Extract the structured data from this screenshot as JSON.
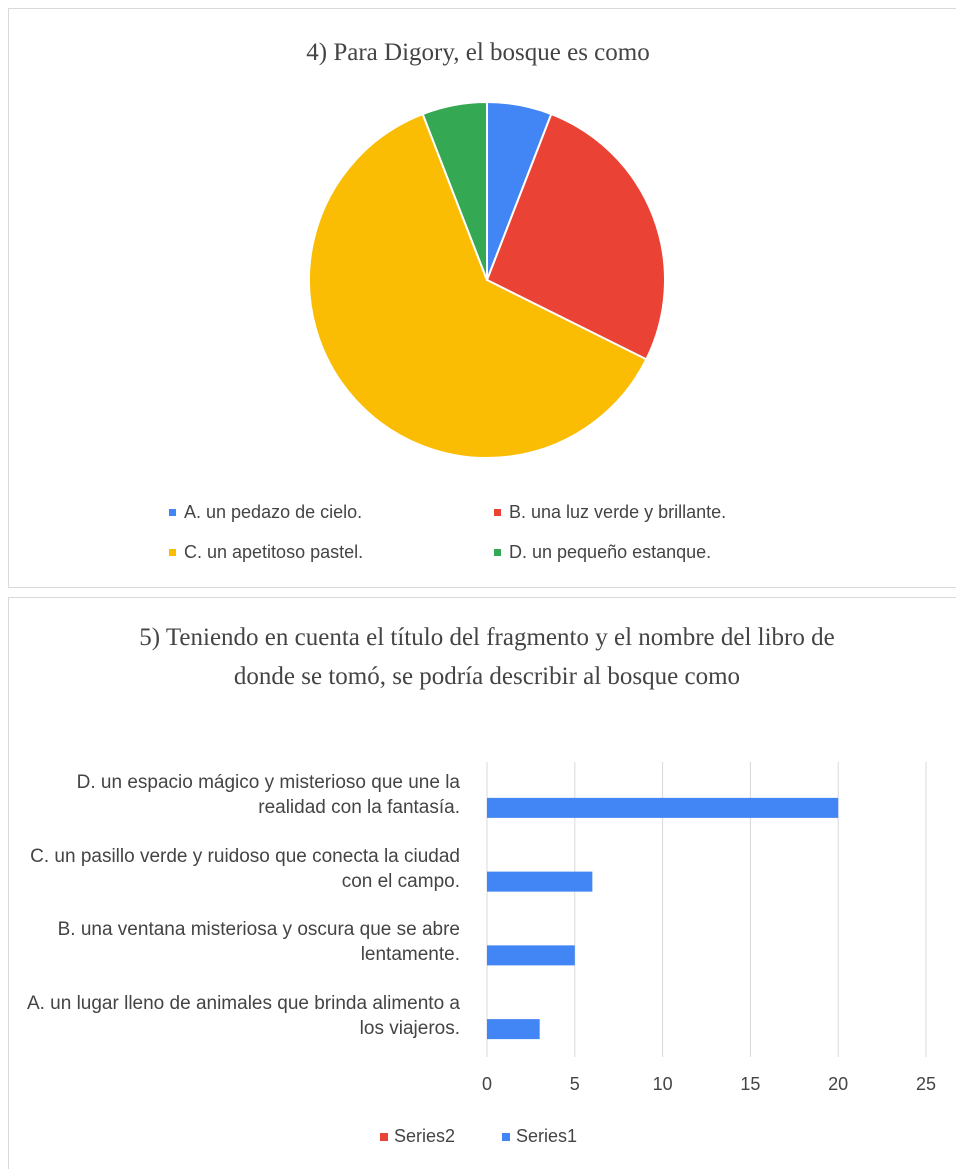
{
  "chart_data": [
    {
      "type": "pie",
      "title": "4) Para Digory, el bosque es como",
      "categories": [
        "A. un pedazo de cielo.",
        "B. una luz verde y brillante.",
        "C. un apetitoso pastel.",
        "D. un pequeño estanque."
      ],
      "values": [
        2,
        9,
        21,
        2
      ],
      "colors": [
        "#4285f4",
        "#ea4335",
        "#fbbc04",
        "#34a853"
      ],
      "legend": "bottom"
    },
    {
      "type": "bar",
      "orientation": "horizontal",
      "title": "5) Teniendo en cuenta el título del fragmento y el nombre del libro de donde se tomó, se podría describir al bosque como",
      "categories": [
        "A. un lugar lleno de animales que brinda alimento a los viajeros.",
        "B. una ventana misteriosa y oscura que se abre lentamente.",
        "C. un pasillo verde y ruidoso que conecta la ciudad con el campo.",
        "D. un espacio mágico y misterioso que une la realidad con la fantasía."
      ],
      "series": [
        {
          "name": "Series2",
          "color": "#ea4335",
          "values": [
            null,
            null,
            null,
            null
          ]
        },
        {
          "name": "Series1",
          "color": "#4285f4",
          "values": [
            3,
            5,
            6,
            20
          ]
        }
      ],
      "xlim": [
        0,
        25
      ],
      "xticks": [
        0,
        5,
        10,
        15,
        20,
        25
      ],
      "grid": true,
      "legend": "bottom"
    }
  ]
}
